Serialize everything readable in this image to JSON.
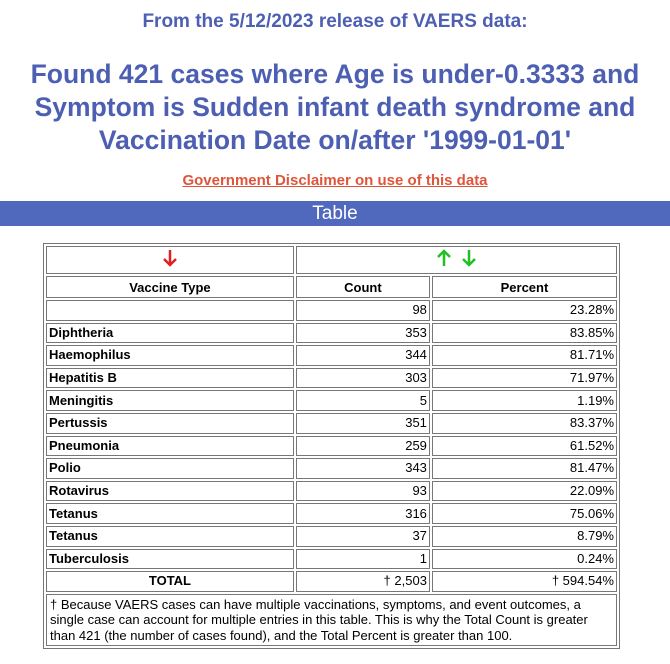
{
  "header": {
    "release": "From the 5/12/2023 release of VAERS data:",
    "title_lines": [
      "Found 421 cases where Age is under-0.3333 and",
      "Symptom is Sudden infant death syndrome and",
      "Vaccination Date on/after '1999-01-01'"
    ],
    "disclaimer": "Government Disclaimer on use of this data"
  },
  "section_title": "Table",
  "table": {
    "columns": [
      "Vaccine Type",
      "Count",
      "Percent"
    ],
    "rows": [
      {
        "count": 98,
        "percent": "23.28%"
      },
      {
        "vaccine": "Diphtheria",
        "count": 353,
        "percent": "83.85%"
      },
      {
        "vaccine": "Haemophilus",
        "count": 344,
        "percent": "81.71%"
      },
      {
        "vaccine": "Hepatitis B",
        "count": 303,
        "percent": "71.97%"
      },
      {
        "vaccine": "Meningitis",
        "count": 5,
        "percent": "1.19%"
      },
      {
        "vaccine": "Pertussis",
        "count": 351,
        "percent": "83.37%"
      },
      {
        "vaccine": "Pneumonia",
        "count": 259,
        "percent": "61.52%"
      },
      {
        "vaccine": "Polio",
        "count": 343,
        "percent": "81.47%"
      },
      {
        "vaccine": "Rotavirus",
        "count": 93,
        "percent": "22.09%"
      },
      {
        "vaccine": "Tetanus",
        "count": 316,
        "percent": "75.06%"
      },
      {
        "vaccine": "Tetanus",
        "count": 37,
        "percent": "8.79%"
      },
      {
        "vaccine": "Tuberculosis",
        "count": 1,
        "percent": "0.24%"
      }
    ],
    "total": {
      "label": "TOTAL",
      "count": "† 2,503",
      "percent": "† 594.54%"
    },
    "footnote": "† Because VAERS cases can have multiple vaccinations, symptoms, and event outcomes, a single case can account for multiple entries in this table. This is why the Total Count is greater than 421 (the number of cases found), and the Total Percent is greater than 100."
  }
}
